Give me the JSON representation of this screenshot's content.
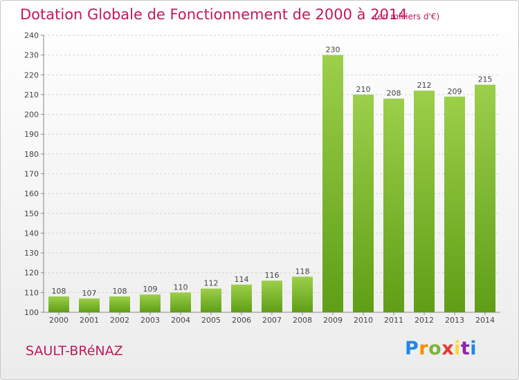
{
  "header": {
    "title": "Dotation Globale de Fonctionnement de 2000 à 2014",
    "subtitle": "(en milliers d'€)"
  },
  "footer": {
    "commune": "SAULT-BRéNAZ",
    "logo_text": "Proxiti"
  },
  "colors": {
    "title": "#c2185b",
    "bar_light": "#9ccf4a",
    "bar_dark": "#5f9e16",
    "grid": "#d4d4d4"
  },
  "chart_data": {
    "type": "bar",
    "title": "Dotation Globale de Fonctionnement de 2000 à 2014",
    "subtitle": "(en milliers d'€)",
    "xlabel": "",
    "ylabel": "",
    "categories": [
      "2000",
      "2001",
      "2002",
      "2003",
      "2004",
      "2005",
      "2006",
      "2007",
      "2008",
      "2009",
      "2010",
      "2011",
      "2012",
      "2013",
      "2014"
    ],
    "values": [
      108,
      107,
      108,
      109,
      110,
      112,
      114,
      116,
      118,
      230,
      210,
      208,
      212,
      209,
      215
    ],
    "ylim": [
      100,
      240
    ],
    "yticks": [
      100,
      110,
      120,
      130,
      140,
      150,
      160,
      170,
      180,
      190,
      200,
      210,
      220,
      230,
      240
    ],
    "grid": "horizontal dashed",
    "legend": "none"
  }
}
